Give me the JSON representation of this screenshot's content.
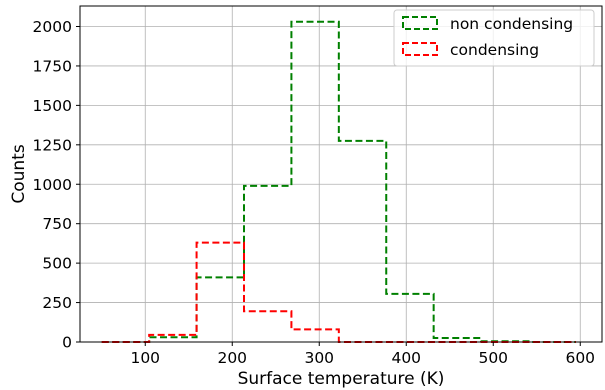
{
  "chart_data": {
    "type": "histogram",
    "xlabel": "Surface temperature (K)",
    "ylabel": "Counts",
    "xlim": [
      25,
      625
    ],
    "ylim": [
      0,
      2130
    ],
    "xticks": [
      100,
      200,
      300,
      400,
      500,
      600
    ],
    "yticks": [
      0,
      250,
      500,
      750,
      1000,
      1250,
      1500,
      1750,
      2000
    ],
    "grid": true,
    "legend_position": "top-right",
    "bin_edges": [
      50,
      104.5,
      159,
      213.5,
      268,
      322.5,
      377,
      431.5,
      486,
      540.5,
      595
    ],
    "series": [
      {
        "name": "non condensing",
        "color": "#008000",
        "values": [
          0,
          30,
          410,
          990,
          2030,
          1275,
          305,
          25,
          5,
          0
        ]
      },
      {
        "name": "condensing",
        "color": "#ff0000",
        "values": [
          0,
          45,
          630,
          195,
          80,
          0,
          0,
          0,
          0,
          0
        ]
      }
    ]
  }
}
